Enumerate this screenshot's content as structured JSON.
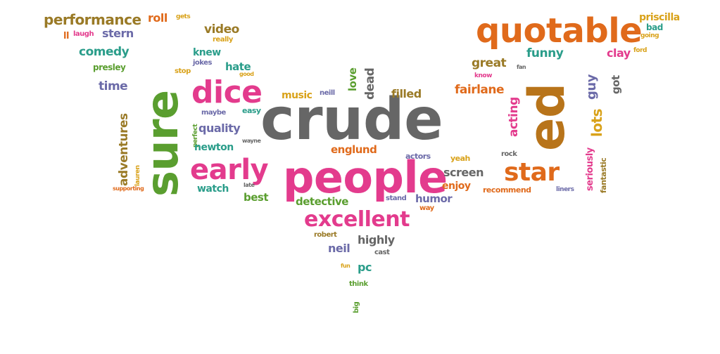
{
  "colors": {
    "pink": "#e33b8d",
    "gray": "#666666",
    "orange": "#e06a1b",
    "brown": "#b8741a",
    "green": "#5a9e2f",
    "teal": "#2a9d8a",
    "purple": "#6b6aa8",
    "gold": "#d9a21a",
    "olive": "#9a7a26"
  },
  "words": [
    {
      "text": "crude",
      "color": "gray"
    },
    {
      "text": "people",
      "color": "pink"
    },
    {
      "text": "sure",
      "color": "green"
    },
    {
      "text": "ed",
      "color": "brown"
    },
    {
      "text": "quotable",
      "color": "orange"
    },
    {
      "text": "dice",
      "color": "pink"
    },
    {
      "text": "early",
      "color": "pink"
    },
    {
      "text": "star",
      "color": "orange"
    },
    {
      "text": "excellent",
      "color": "pink"
    },
    {
      "text": "performance",
      "color": "olive"
    },
    {
      "text": "roll",
      "color": "orange"
    },
    {
      "text": "gets",
      "color": "gold"
    },
    {
      "text": "ll",
      "color": "orange"
    },
    {
      "text": "laugh",
      "color": "pink"
    },
    {
      "text": "stern",
      "color": "purple"
    },
    {
      "text": "video",
      "color": "olive"
    },
    {
      "text": "really",
      "color": "gold"
    },
    {
      "text": "knew",
      "color": "teal"
    },
    {
      "text": "comedy",
      "color": "teal"
    },
    {
      "text": "jokes",
      "color": "purple"
    },
    {
      "text": "hate",
      "color": "teal"
    },
    {
      "text": "presley",
      "color": "green"
    },
    {
      "text": "stop",
      "color": "gold"
    },
    {
      "text": "good",
      "color": "gold"
    },
    {
      "text": "time",
      "color": "purple"
    },
    {
      "text": "adventures",
      "color": "olive"
    },
    {
      "text": "lauren",
      "color": "gold"
    },
    {
      "text": "supporting",
      "color": "orange"
    },
    {
      "text": "perfect",
      "color": "green"
    },
    {
      "text": "maybe",
      "color": "purple"
    },
    {
      "text": "easy",
      "color": "teal"
    },
    {
      "text": "quality",
      "color": "purple"
    },
    {
      "text": "newton",
      "color": "teal"
    },
    {
      "text": "wayne",
      "color": "gray"
    },
    {
      "text": "watch",
      "color": "teal"
    },
    {
      "text": "late",
      "color": "gray"
    },
    {
      "text": "best",
      "color": "green"
    },
    {
      "text": "music",
      "color": "gold"
    },
    {
      "text": "neill",
      "color": "purple"
    },
    {
      "text": "love",
      "color": "green"
    },
    {
      "text": "dead",
      "color": "gray"
    },
    {
      "text": "filled",
      "color": "olive"
    },
    {
      "text": "englund",
      "color": "orange"
    },
    {
      "text": "actors",
      "color": "purple"
    },
    {
      "text": "yeah",
      "color": "gold"
    },
    {
      "text": "screen",
      "color": "gray"
    },
    {
      "text": "enjoy",
      "color": "orange"
    },
    {
      "text": "detective",
      "color": "green"
    },
    {
      "text": "stand",
      "color": "purple"
    },
    {
      "text": "humor",
      "color": "purple"
    },
    {
      "text": "way",
      "color": "orange"
    },
    {
      "text": "robert",
      "color": "olive"
    },
    {
      "text": "neil",
      "color": "purple"
    },
    {
      "text": "highly",
      "color": "gray"
    },
    {
      "text": "cast",
      "color": "gray"
    },
    {
      "text": "fun",
      "color": "gold"
    },
    {
      "text": "pc",
      "color": "teal"
    },
    {
      "text": "think",
      "color": "green"
    },
    {
      "text": "big",
      "color": "green"
    },
    {
      "text": "fairlane",
      "color": "orange"
    },
    {
      "text": "great",
      "color": "olive"
    },
    {
      "text": "know",
      "color": "pink"
    },
    {
      "text": "fan",
      "color": "gray"
    },
    {
      "text": "funny",
      "color": "teal"
    },
    {
      "text": "guy",
      "color": "purple"
    },
    {
      "text": "got",
      "color": "gray"
    },
    {
      "text": "clay",
      "color": "pink"
    },
    {
      "text": "ford",
      "color": "gold"
    },
    {
      "text": "priscilla",
      "color": "gold"
    },
    {
      "text": "bad",
      "color": "teal"
    },
    {
      "text": "going",
      "color": "gold"
    },
    {
      "text": "acting",
      "color": "pink"
    },
    {
      "text": "lots",
      "color": "gold"
    },
    {
      "text": "rock",
      "color": "gray"
    },
    {
      "text": "recommend",
      "color": "orange"
    },
    {
      "text": "liners",
      "color": "purple"
    },
    {
      "text": "seriously",
      "color": "pink"
    },
    {
      "text": "fantastic",
      "color": "olive"
    }
  ]
}
